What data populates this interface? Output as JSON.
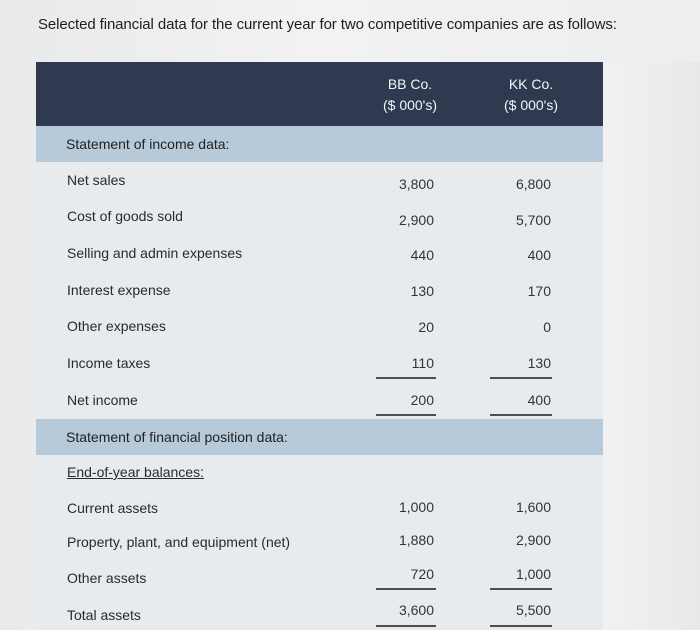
{
  "question": "Selected financial data for the current year for two competitive companies are as follows:",
  "columns": {
    "bb": {
      "name": "BB Co.",
      "unit": "($ 000's)"
    },
    "kk": {
      "name": "KK Co.",
      "unit": "($ 000's)"
    }
  },
  "sections": {
    "income": "Statement of income data:",
    "position": "Statement of financial position data:"
  },
  "income_rows": [
    {
      "label": "Net sales",
      "bb": "3,800",
      "kk": "6,800"
    },
    {
      "label": "Cost of goods sold",
      "bb": "2,900",
      "kk": "5,700"
    },
    {
      "label": "Selling and admin expenses",
      "bb": "440",
      "kk": "400"
    },
    {
      "label": "Interest expense",
      "bb": "130",
      "kk": "170"
    },
    {
      "label": "Other expenses",
      "bb": "20",
      "kk": "0"
    },
    {
      "label": "Income taxes",
      "bb": "110",
      "kk": "130"
    },
    {
      "label": "Net income",
      "bb": "200",
      "kk": "400"
    }
  ],
  "balances_label": "End-of-year balances:",
  "position_rows": [
    {
      "label": "Current assets",
      "bb": "1,000",
      "kk": "1,600"
    },
    {
      "label": "Property, plant, and equipment (net)",
      "bb": "1,880",
      "kk": "2,900"
    },
    {
      "label": "Other assets",
      "bb": "720",
      "kk": "1,000"
    },
    {
      "label": "Total assets",
      "bb": "3,600",
      "kk": "5,500"
    }
  ]
}
